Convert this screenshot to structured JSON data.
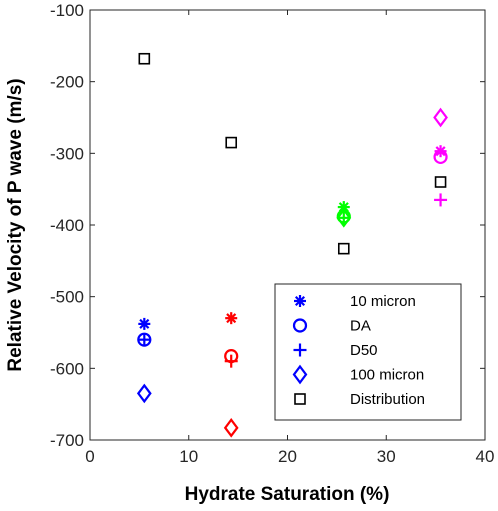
{
  "chart_data": {
    "type": "scatter",
    "title": "",
    "xlabel": "Hydrate Saturation (%)",
    "ylabel": "Relative Velocity of P wave (m/s)",
    "xlim": [
      0,
      40
    ],
    "ylim": [
      -700,
      -100
    ],
    "xticks": [
      0,
      10,
      20,
      30,
      40
    ],
    "yticks": [
      -700,
      -600,
      -500,
      -400,
      -300,
      -200,
      -100
    ],
    "grid": false,
    "legend_position": "lower-right",
    "series": [
      {
        "name": "10 micron",
        "marker": "asterisk",
        "x": [
          5.5,
          14.3,
          25.7,
          35.5
        ],
        "y": [
          -538,
          -530,
          -375,
          -297
        ]
      },
      {
        "name": "DA",
        "marker": "circle",
        "x": [
          5.5,
          14.3,
          25.7,
          35.5
        ],
        "y": [
          -560,
          -583,
          -388,
          -305
        ]
      },
      {
        "name": "D50",
        "marker": "plus",
        "x": [
          5.5,
          14.3,
          25.7,
          35.5
        ],
        "y": [
          -560,
          -590,
          -390,
          -365
        ]
      },
      {
        "name": "100 micron",
        "marker": "diamond",
        "x": [
          5.5,
          14.3,
          25.7,
          35.5
        ],
        "y": [
          -635,
          -683,
          -390,
          -250
        ]
      },
      {
        "name": "Distribution",
        "marker": "square",
        "x": [
          5.5,
          14.3,
          25.7,
          35.5
        ],
        "y": [
          -168,
          -285,
          -433,
          -340
        ]
      }
    ],
    "group_colors": [
      "#0000ff",
      "#ff0000",
      "#00ff00",
      "#ff00ff"
    ],
    "distribution_color": "#000000"
  }
}
